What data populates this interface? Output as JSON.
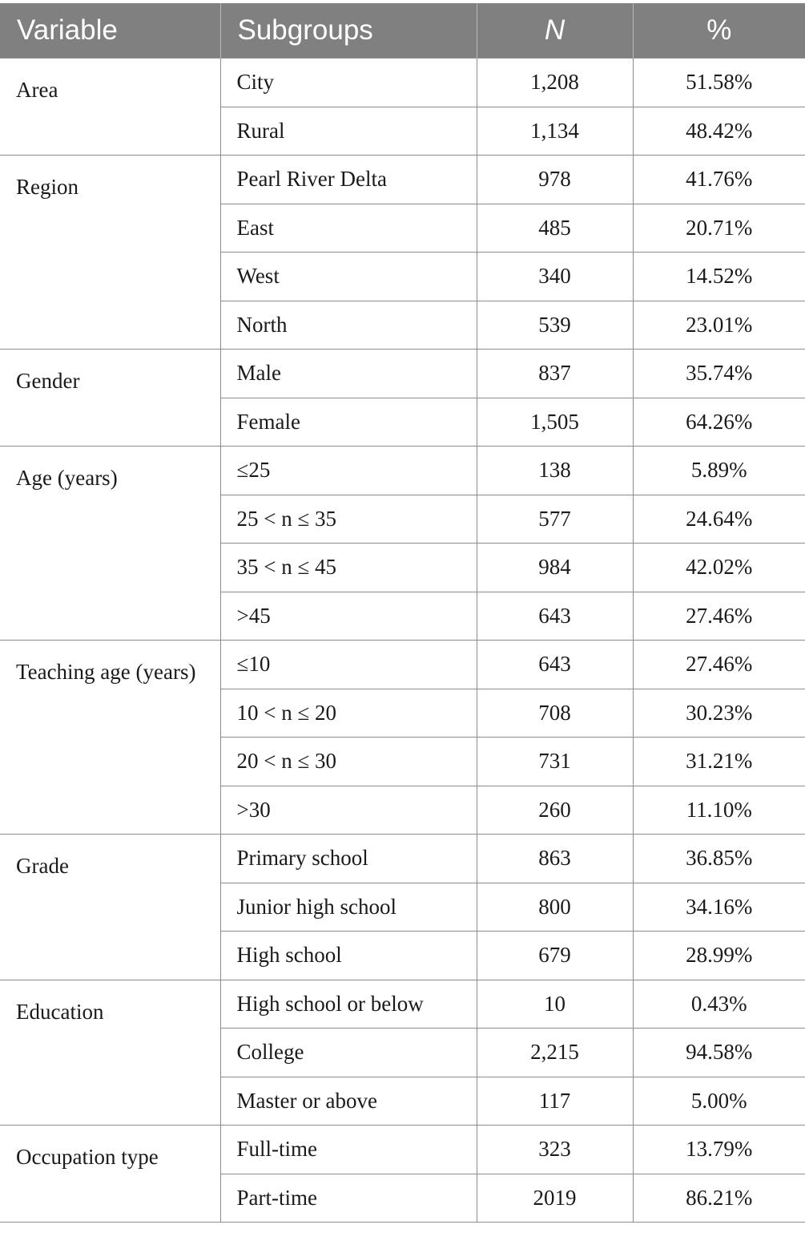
{
  "table": {
    "headers": {
      "variable": "Variable",
      "subgroups": "Subgroups",
      "n": "N",
      "percent": "%"
    },
    "groups": [
      {
        "variable": "Area",
        "rows": [
          {
            "subgroup": "City",
            "n": "1,208",
            "percent": "51.58%"
          },
          {
            "subgroup": "Rural",
            "n": "1,134",
            "percent": "48.42%"
          }
        ]
      },
      {
        "variable": "Region",
        "rows": [
          {
            "subgroup": "Pearl River Delta",
            "n": "978",
            "percent": "41.76%"
          },
          {
            "subgroup": "East",
            "n": "485",
            "percent": "20.71%"
          },
          {
            "subgroup": "West",
            "n": "340",
            "percent": "14.52%"
          },
          {
            "subgroup": "North",
            "n": "539",
            "percent": "23.01%"
          }
        ]
      },
      {
        "variable": "Gender",
        "rows": [
          {
            "subgroup": "Male",
            "n": "837",
            "percent": "35.74%"
          },
          {
            "subgroup": "Female",
            "n": "1,505",
            "percent": "64.26%"
          }
        ]
      },
      {
        "variable": "Age (years)",
        "rows": [
          {
            "subgroup": "≤25",
            "n": "138",
            "percent": "5.89%"
          },
          {
            "subgroup": "25 < n ≤ 35",
            "n": "577",
            "percent": "24.64%"
          },
          {
            "subgroup": "35 < n ≤ 45",
            "n": "984",
            "percent": "42.02%"
          },
          {
            "subgroup": ">45",
            "n": "643",
            "percent": "27.46%"
          }
        ]
      },
      {
        "variable": "Teaching age (years)",
        "rows": [
          {
            "subgroup": "≤10",
            "n": "643",
            "percent": "27.46%"
          },
          {
            "subgroup": "10 < n ≤ 20",
            "n": "708",
            "percent": "30.23%"
          },
          {
            "subgroup": "20 < n ≤ 30",
            "n": "731",
            "percent": "31.21%"
          },
          {
            "subgroup": ">30",
            "n": "260",
            "percent": "11.10%"
          }
        ]
      },
      {
        "variable": "Grade",
        "rows": [
          {
            "subgroup": "Primary school",
            "n": "863",
            "percent": "36.85%"
          },
          {
            "subgroup": "Junior high school",
            "n": "800",
            "percent": "34.16%"
          },
          {
            "subgroup": "High school",
            "n": "679",
            "percent": "28.99%"
          }
        ]
      },
      {
        "variable": "Education",
        "rows": [
          {
            "subgroup": "High school or below",
            "n": "10",
            "percent": "0.43%"
          },
          {
            "subgroup": "College",
            "n": "2,215",
            "percent": "94.58%"
          },
          {
            "subgroup": "Master or above",
            "n": "117",
            "percent": "5.00%"
          }
        ]
      },
      {
        "variable": "Occupation type",
        "rows": [
          {
            "subgroup": "Full-time",
            "n": "323",
            "percent": "13.79%"
          },
          {
            "subgroup": "Part-time",
            "n": "2019",
            "percent": "86.21%"
          }
        ]
      }
    ]
  }
}
